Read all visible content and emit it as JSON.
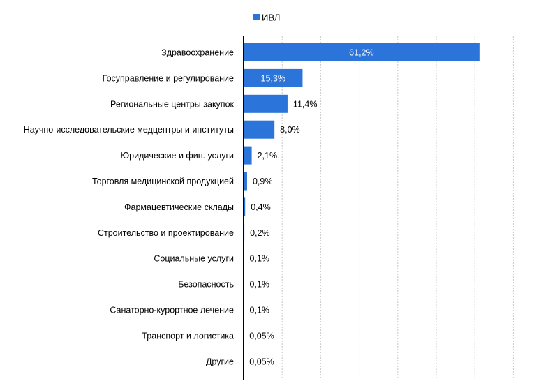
{
  "chart_data": {
    "type": "bar",
    "orientation": "horizontal",
    "legend": {
      "position": "top",
      "entries": [
        "ИВЛ"
      ]
    },
    "categories": [
      "Здравоохранение",
      "Госуправление и регулирование",
      "Региональные центры закупок",
      "Научно-исследовательские медцентры и институты",
      "Юридические и фин. услуги",
      "Торговля медицинской продукцией",
      "Фармацевтические склады",
      "Строительство и проектирование",
      "Социальные услуги",
      "Безопасность",
      "Санаторно-курортное лечение",
      "Транспорт и логистика",
      "Другие"
    ],
    "series": [
      {
        "name": "ИВЛ",
        "color": "#2B74D9",
        "values": [
          61.2,
          15.3,
          11.4,
          8.0,
          2.1,
          0.9,
          0.4,
          0.2,
          0.1,
          0.1,
          0.1,
          0.05,
          0.05
        ],
        "labels": [
          "61,2%",
          "15,3%",
          "11,4%",
          "8,0%",
          "2,1%",
          "0,9%",
          "0,4%",
          "0,2%",
          "0,1%",
          "0,1%",
          "0,1%",
          "0,05%",
          "0,05%"
        ]
      }
    ],
    "xlim": [
      0,
      70
    ],
    "grid": {
      "vertical": true,
      "style": "dashed"
    },
    "axis_color": "#000000"
  }
}
